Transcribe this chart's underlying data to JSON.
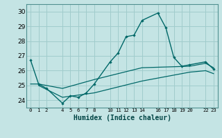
{
  "xlabel": "Humidex (Indice chaleur)",
  "background_color": "#c4e4e4",
  "grid_color": "#a0cccc",
  "line_color": "#006868",
  "xlim": [
    -0.5,
    23.5
  ],
  "ylim": [
    23.5,
    30.5
  ],
  "yticks": [
    24,
    25,
    26,
    27,
    28,
    29,
    30
  ],
  "xtick_positions": [
    0,
    1,
    2,
    4,
    5,
    6,
    7,
    8,
    10,
    11,
    12,
    13,
    14,
    16,
    17,
    18,
    19,
    20,
    22,
    23
  ],
  "xtick_labels": [
    "0",
    "1",
    "2",
    "4",
    "5",
    "6",
    "7",
    "8",
    "10",
    "11",
    "12",
    "13",
    "14",
    "16",
    "17",
    "18",
    "19",
    "20",
    "22",
    "23"
  ],
  "line1_x": [
    0,
    1,
    2,
    4,
    5,
    6,
    7,
    8,
    10,
    11,
    12,
    13,
    14,
    16,
    17,
    18,
    19,
    20,
    22,
    23
  ],
  "line1_y": [
    26.7,
    25.1,
    24.8,
    23.8,
    24.3,
    24.2,
    24.5,
    25.1,
    26.6,
    27.2,
    28.3,
    28.4,
    29.4,
    29.9,
    28.9,
    26.9,
    26.3,
    26.4,
    26.6,
    26.1
  ],
  "line2_x": [
    0,
    1,
    4,
    8,
    14,
    20,
    22,
    23
  ],
  "line2_y": [
    25.1,
    25.1,
    24.8,
    25.4,
    26.2,
    26.3,
    26.5,
    26.2
  ],
  "line3_x": [
    1,
    4,
    8,
    14,
    20,
    22,
    23
  ],
  "line3_y": [
    25.0,
    24.2,
    24.5,
    25.3,
    25.9,
    26.0,
    25.8
  ]
}
